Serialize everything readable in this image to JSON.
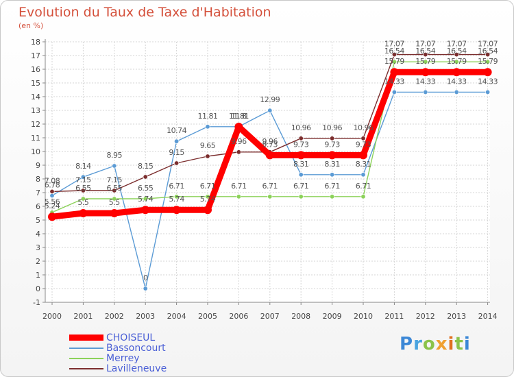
{
  "title": "Evolution du Taux de Taxe d'Habitation",
  "unit_label": "(en %)",
  "logo_text": "Proxiti",
  "chart_data": {
    "type": "line",
    "title": "Evolution du Taux de Taxe d'Habitation",
    "subtitle": "(en %)",
    "xlabel": "",
    "ylabel": "",
    "categories": [
      2000,
      2001,
      2002,
      2003,
      2004,
      2005,
      2006,
      2007,
      2008,
      2009,
      2010,
      2011,
      2012,
      2013,
      2014
    ],
    "ylim": [
      -1,
      18
    ],
    "yticks": [
      -1,
      0,
      1,
      2,
      3,
      4,
      5,
      6,
      7,
      8,
      9,
      10,
      11,
      12,
      13,
      14,
      15,
      16,
      17,
      18
    ],
    "grid": true,
    "legend_position": "bottom-left",
    "series": [
      {
        "name": "CHOISEUL",
        "color": "#ff0000",
        "values": [
          5.24,
          5.5,
          5.5,
          5.74,
          5.74,
          5.74,
          11.8,
          9.73,
          9.73,
          9.73,
          9.73,
          15.79,
          15.79,
          15.79,
          15.79
        ],
        "labels": [
          "5.24",
          "5.5",
          "5.5",
          "5.74",
          "5.74",
          "5.74",
          "11.8",
          "9.73",
          "9.73",
          "9.73",
          "9.73",
          "15.79",
          "15.79",
          "15.79",
          "15.79"
        ]
      },
      {
        "name": "Bassoncourt",
        "color": "#5b9bd5",
        "values": [
          6.78,
          8.14,
          8.95,
          0,
          10.74,
          11.81,
          11.81,
          12.99,
          8.31,
          8.31,
          8.31,
          14.33,
          14.33,
          14.33,
          14.33
        ],
        "labels": [
          "6.78",
          "8.14",
          "8.95",
          "0",
          "10.74",
          "11.81",
          "11.81",
          "12.99",
          "8.31",
          "8.31",
          "8.31",
          "14.33",
          "14.33",
          "14.33",
          "14.33"
        ]
      },
      {
        "name": "Merrey",
        "color": "#8cd25a",
        "values": [
          5.56,
          6.55,
          6.55,
          6.55,
          6.71,
          6.71,
          6.71,
          6.71,
          6.71,
          6.71,
          6.71,
          16.54,
          16.54,
          16.54,
          16.54
        ],
        "labels": [
          "5.56",
          "6.55",
          "6.55",
          "6.55",
          "6.71",
          "6.71",
          "6.71",
          "6.71",
          "6.71",
          "6.71",
          "6.71",
          "16.54",
          "16.54",
          "16.54",
          "16.54"
        ]
      },
      {
        "name": "Lavilleneuve",
        "color": "#7b2d2d",
        "values": [
          7.08,
          7.15,
          7.15,
          8.15,
          9.15,
          9.65,
          9.96,
          9.96,
          10.96,
          10.96,
          10.96,
          17.07,
          17.07,
          17.07,
          17.07
        ],
        "labels": [
          "7.08",
          "7.15",
          "7.15",
          "8.15",
          "9.15",
          "9.65",
          "9.96",
          "9.96",
          "10.96",
          "10.96",
          "10.96",
          "17.07",
          "17.07",
          "17.07",
          "17.07"
        ]
      }
    ]
  }
}
